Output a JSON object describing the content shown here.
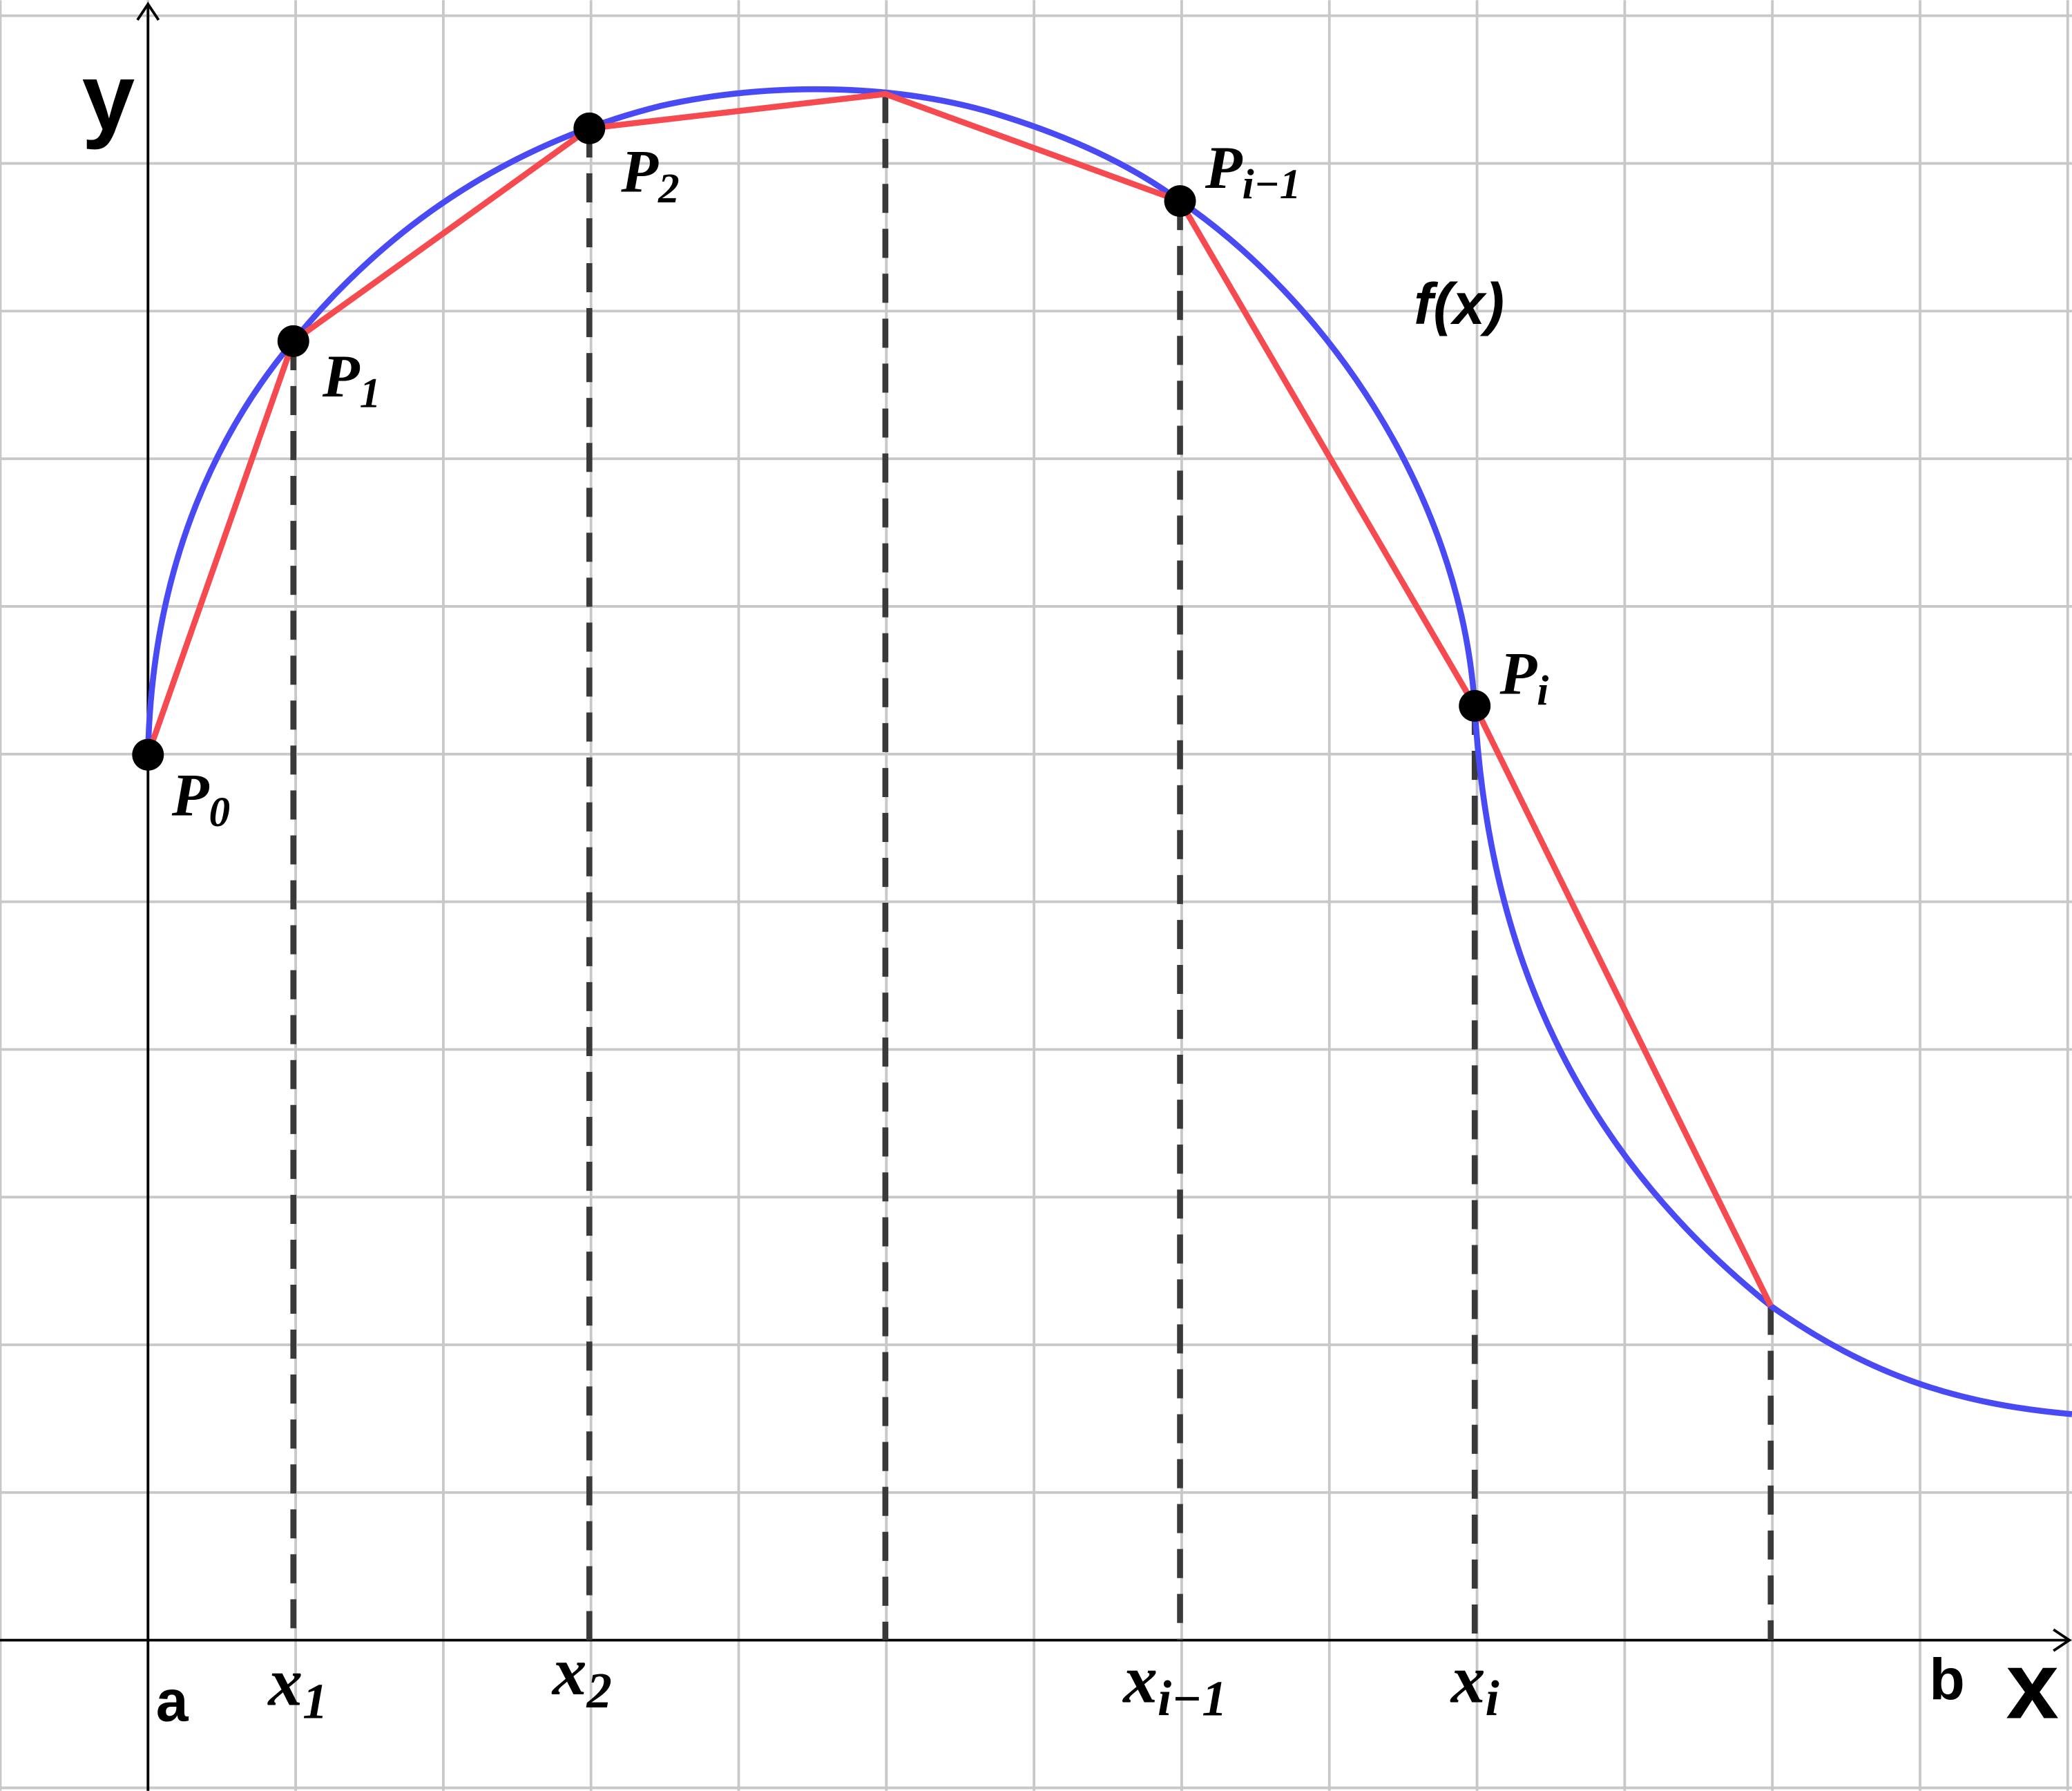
{
  "axes": {
    "y_label": "y",
    "x_label": "x",
    "start": "a",
    "end": "b"
  },
  "curve_label": "f(x)",
  "points": [
    {
      "base": "P",
      "sub": "0"
    },
    {
      "base": "P",
      "sub": "1"
    },
    {
      "base": "P",
      "sub": "2"
    },
    {
      "base": "P",
      "sub": "i−1"
    },
    {
      "base": "P",
      "sub": "i"
    }
  ],
  "x_labels": [
    {
      "base": "x",
      "sub": "1"
    },
    {
      "base": "x",
      "sub": "2"
    },
    {
      "base": "x",
      "sub": "i−1"
    },
    {
      "base": "x",
      "sub": "i"
    }
  ]
}
